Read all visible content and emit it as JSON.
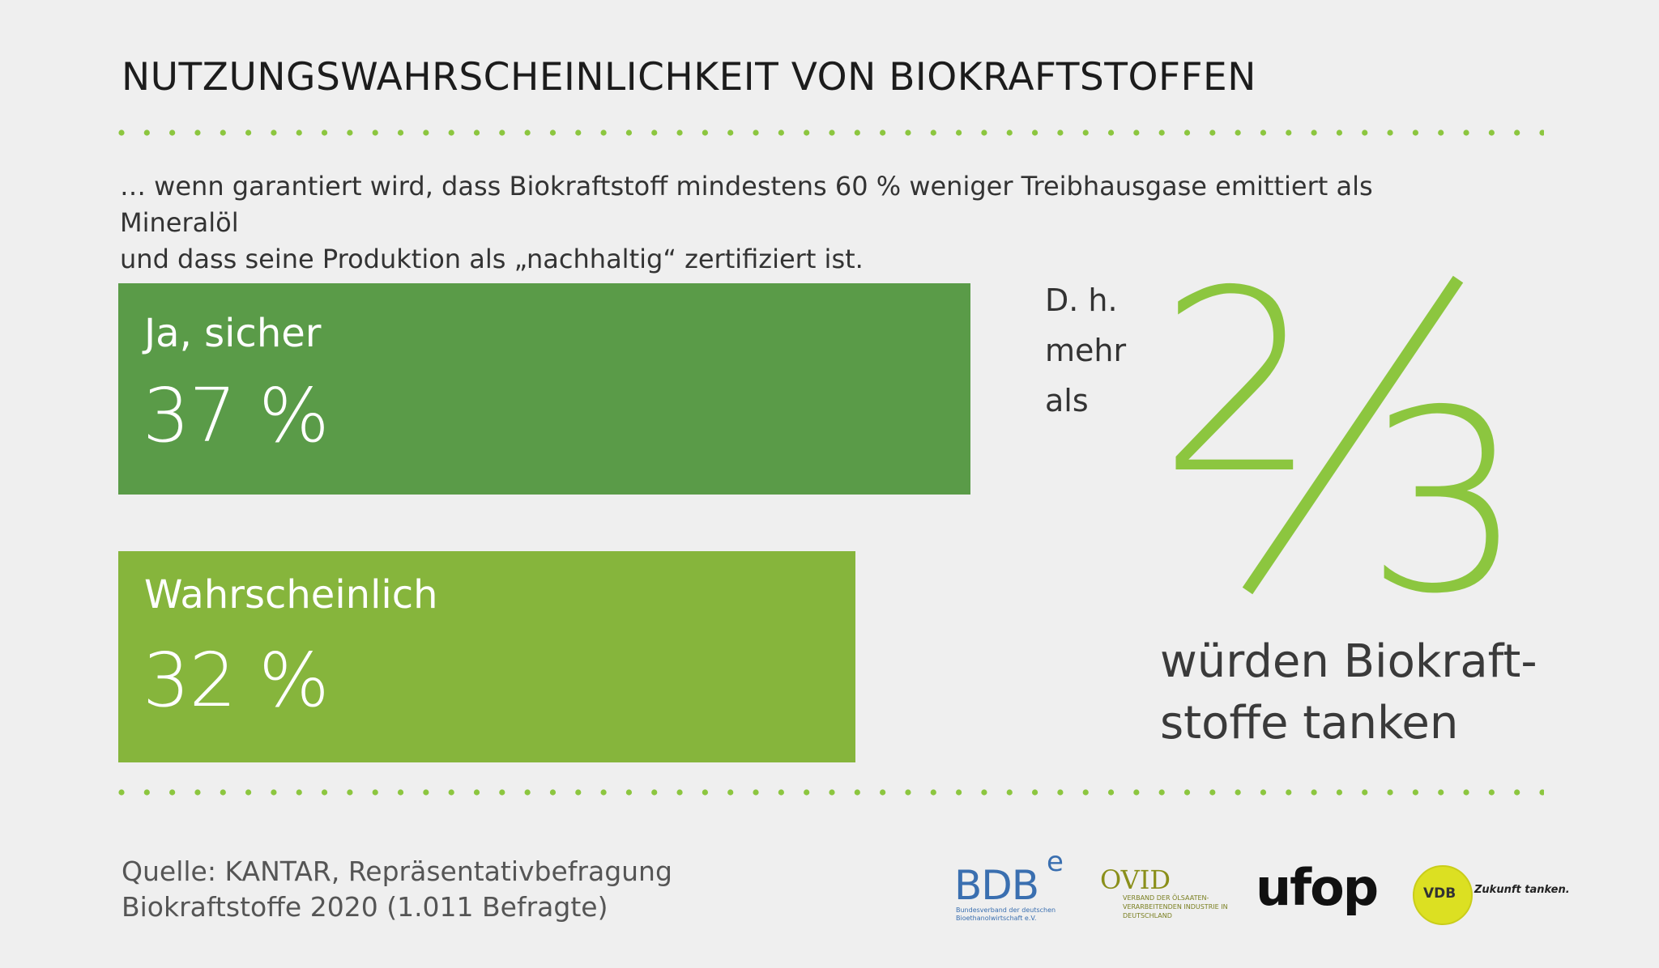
{
  "title": "NUTZUNGSWAHRSCHEINLICHKEIT VON BIOKRAFTSTOFFEN",
  "subtitle_line1": "… wenn garantiert wird, dass Biokraftstoff mindestens 60 % weniger Treibhausgase emittiert als Mineralöl",
  "subtitle_line2": "und dass seine Produktion als „nachhaltig“ zertifiziert ist.",
  "chart_data": {
    "type": "bar",
    "title": "NUTZUNGSWAHRSCHEINLICHKEIT VON BIOKRAFTSTOFFEN",
    "orientation": "horizontal",
    "categories": [
      "Ja, sicher",
      "Wahrscheinlich"
    ],
    "values": [
      37,
      32
    ],
    "value_labels": [
      "37 %",
      "32 %"
    ],
    "unit": "%",
    "colors": [
      "#5a9b48",
      "#86b53c"
    ],
    "xlim": [
      0,
      40
    ]
  },
  "summary": {
    "prefix_lines": [
      "D. h.",
      "mehr",
      "als"
    ],
    "numerator": "2",
    "denominator": "3",
    "fraction_color": "#8cc63f",
    "text_line1": "würden Biokraft-",
    "text_line2": "stoffe tanken"
  },
  "source": {
    "line1": "Quelle: KANTAR, Repräsentativbefragung",
    "line2": "Biokraftstoffe 2020 (1.011 Befragte)"
  },
  "logos": {
    "bdbe": {
      "main": "BDB",
      "sup": "e",
      "sub": "Bundesverband der deutschen Bioethanolwirtschaft e.V."
    },
    "ovid": {
      "main": "OVID",
      "sub": "VERBAND DER ÖLSAATEN-VERARBEITENDEN INDUSTRIE IN DEUTSCHLAND"
    },
    "ufop": {
      "main": "ufop"
    },
    "vdb": {
      "main": "VDB",
      "tagline": "Zukunft tanken."
    }
  },
  "dot_color": "#8cc63f"
}
